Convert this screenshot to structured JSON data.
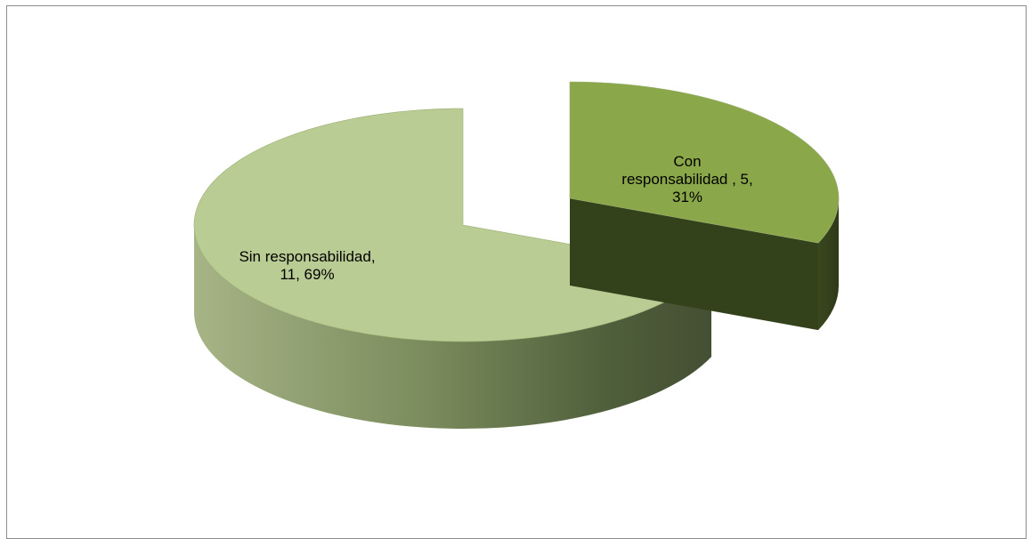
{
  "chart_data": {
    "type": "pie",
    "style": "3d-exploded",
    "slices": [
      {
        "name": "Sin responsabilidad",
        "value": 11,
        "percent": 69,
        "label": "Sin responsabilidad,\n11, 69%",
        "top_color": "#b9cc94",
        "side_color": "#4b5a36"
      },
      {
        "name": "Con responsabilidad",
        "value": 5,
        "percent": 31,
        "label": "Con\nresponsabilidad  , 5,\n31%",
        "top_color": "#8aa84a",
        "side_color": "#34421c"
      }
    ]
  }
}
